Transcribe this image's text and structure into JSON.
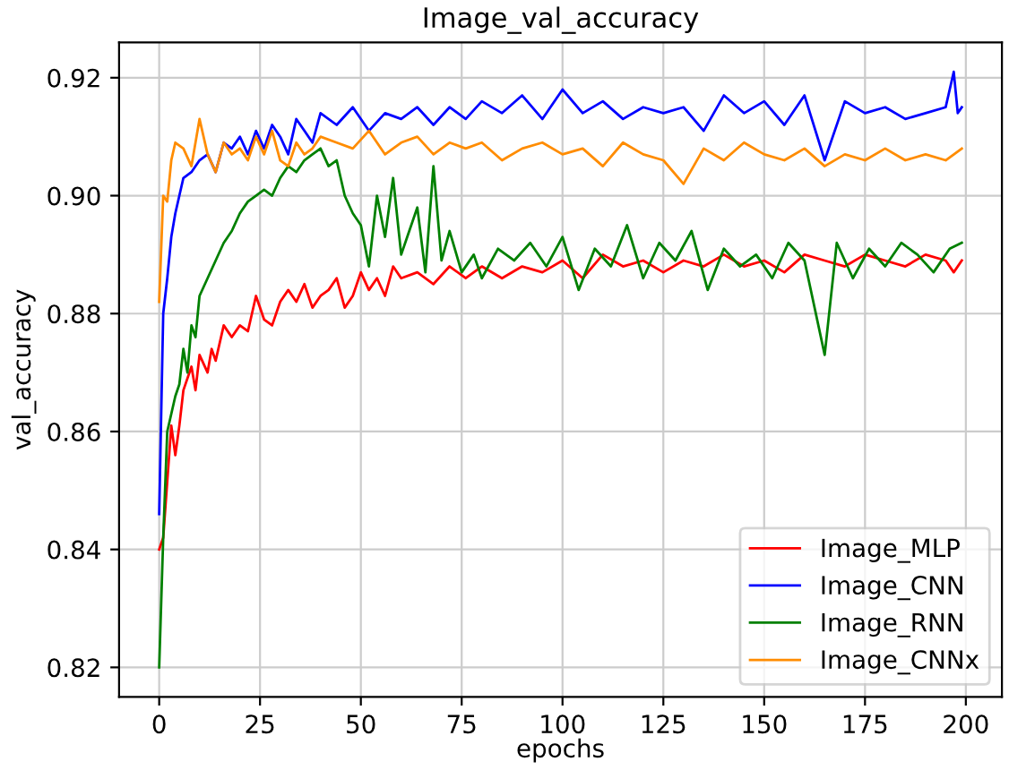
{
  "chart_data": {
    "type": "line",
    "title": "Image_val_accuracy",
    "xlabel": "epochs",
    "ylabel": "val_accuracy",
    "xlim": [
      -9.95,
      208.95
    ],
    "ylim": [
      0.815,
      0.926
    ],
    "xticks": [
      0,
      25,
      50,
      75,
      100,
      125,
      150,
      175,
      200
    ],
    "yticks": [
      {
        "value": 0.82,
        "label": "0.82"
      },
      {
        "value": 0.84,
        "label": "0.84"
      },
      {
        "value": 0.86,
        "label": "0.86"
      },
      {
        "value": 0.88,
        "label": "0.88"
      },
      {
        "value": 0.9,
        "label": "0.90"
      },
      {
        "value": 0.92,
        "label": "0.92"
      }
    ],
    "grid": true,
    "legend": "bottom right",
    "line_style": "solid",
    "marker": "none",
    "series": [
      {
        "name": "Image_MLP",
        "color": "#ff0000",
        "x": [
          0,
          1,
          3,
          4,
          5,
          6,
          8,
          9,
          10,
          12,
          13,
          14,
          16,
          18,
          20,
          22,
          24,
          26,
          28,
          30,
          32,
          34,
          36,
          38,
          40,
          42,
          44,
          46,
          48,
          50,
          52,
          54,
          56,
          58,
          60,
          64,
          68,
          72,
          76,
          80,
          85,
          90,
          95,
          100,
          105,
          110,
          115,
          120,
          125,
          130,
          135,
          140,
          145,
          150,
          155,
          160,
          165,
          170,
          175,
          180,
          185,
          190,
          195,
          197,
          199
        ],
        "values": [
          0.84,
          0.842,
          0.861,
          0.856,
          0.861,
          0.867,
          0.871,
          0.867,
          0.873,
          0.87,
          0.874,
          0.872,
          0.878,
          0.876,
          0.878,
          0.877,
          0.883,
          0.879,
          0.878,
          0.882,
          0.884,
          0.882,
          0.885,
          0.881,
          0.883,
          0.884,
          0.886,
          0.881,
          0.883,
          0.887,
          0.884,
          0.886,
          0.883,
          0.888,
          0.886,
          0.887,
          0.885,
          0.888,
          0.886,
          0.888,
          0.886,
          0.888,
          0.887,
          0.889,
          0.886,
          0.89,
          0.888,
          0.889,
          0.887,
          0.889,
          0.888,
          0.89,
          0.888,
          0.889,
          0.887,
          0.89,
          0.889,
          0.888,
          0.89,
          0.889,
          0.888,
          0.89,
          0.889,
          0.887,
          0.889
        ]
      },
      {
        "name": "Image_CNN",
        "color": "#0000ff",
        "x": [
          0,
          1,
          2,
          3,
          4,
          5,
          6,
          8,
          10,
          12,
          14,
          16,
          18,
          20,
          22,
          24,
          26,
          28,
          30,
          32,
          34,
          36,
          38,
          40,
          44,
          48,
          52,
          56,
          60,
          64,
          68,
          72,
          76,
          80,
          85,
          90,
          95,
          100,
          105,
          110,
          115,
          120,
          125,
          130,
          135,
          140,
          145,
          150,
          155,
          160,
          165,
          170,
          175,
          180,
          185,
          190,
          195,
          197,
          198,
          199
        ],
        "values": [
          0.846,
          0.88,
          0.886,
          0.893,
          0.897,
          0.9,
          0.903,
          0.904,
          0.906,
          0.907,
          0.904,
          0.909,
          0.908,
          0.91,
          0.907,
          0.911,
          0.908,
          0.912,
          0.91,
          0.907,
          0.913,
          0.911,
          0.909,
          0.914,
          0.912,
          0.915,
          0.911,
          0.914,
          0.913,
          0.915,
          0.912,
          0.915,
          0.913,
          0.916,
          0.914,
          0.917,
          0.913,
          0.918,
          0.914,
          0.916,
          0.913,
          0.915,
          0.914,
          0.915,
          0.911,
          0.917,
          0.914,
          0.916,
          0.912,
          0.917,
          0.906,
          0.916,
          0.914,
          0.915,
          0.913,
          0.914,
          0.915,
          0.921,
          0.914,
          0.915
        ]
      },
      {
        "name": "Image_RNN",
        "color": "#008000",
        "x": [
          0,
          1,
          2,
          3,
          4,
          5,
          6,
          7,
          8,
          9,
          10,
          12,
          14,
          16,
          18,
          20,
          22,
          24,
          26,
          28,
          30,
          32,
          34,
          36,
          38,
          40,
          42,
          44,
          46,
          48,
          50,
          52,
          54,
          56,
          58,
          60,
          62,
          64,
          66,
          68,
          70,
          72,
          75,
          78,
          80,
          84,
          88,
          92,
          96,
          100,
          104,
          108,
          112,
          116,
          120,
          124,
          128,
          132,
          136,
          140,
          144,
          148,
          152,
          156,
          160,
          165,
          168,
          172,
          176,
          180,
          184,
          188,
          192,
          196,
          199
        ],
        "values": [
          0.82,
          0.842,
          0.86,
          0.863,
          0.866,
          0.868,
          0.874,
          0.87,
          0.878,
          0.876,
          0.883,
          0.886,
          0.889,
          0.892,
          0.894,
          0.897,
          0.899,
          0.9,
          0.901,
          0.9,
          0.903,
          0.905,
          0.904,
          0.906,
          0.907,
          0.908,
          0.905,
          0.906,
          0.9,
          0.897,
          0.895,
          0.888,
          0.9,
          0.893,
          0.903,
          0.89,
          0.894,
          0.898,
          0.887,
          0.905,
          0.889,
          0.894,
          0.887,
          0.89,
          0.886,
          0.891,
          0.889,
          0.892,
          0.888,
          0.893,
          0.884,
          0.891,
          0.888,
          0.895,
          0.886,
          0.892,
          0.889,
          0.894,
          0.884,
          0.891,
          0.888,
          0.89,
          0.886,
          0.892,
          0.889,
          0.873,
          0.892,
          0.886,
          0.891,
          0.888,
          0.892,
          0.89,
          0.887,
          0.891,
          0.892
        ]
      },
      {
        "name": "Image_CNNx",
        "color": "#ff8c00",
        "x": [
          0,
          1,
          2,
          3,
          4,
          6,
          8,
          10,
          12,
          14,
          16,
          18,
          20,
          22,
          24,
          26,
          28,
          30,
          32,
          34,
          36,
          38,
          40,
          44,
          48,
          52,
          56,
          60,
          64,
          68,
          72,
          76,
          80,
          85,
          90,
          95,
          100,
          105,
          110,
          115,
          120,
          125,
          130,
          135,
          140,
          145,
          150,
          155,
          160,
          165,
          170,
          175,
          180,
          185,
          190,
          195,
          199
        ],
        "values": [
          0.882,
          0.9,
          0.899,
          0.906,
          0.909,
          0.908,
          0.905,
          0.913,
          0.907,
          0.904,
          0.909,
          0.907,
          0.908,
          0.906,
          0.91,
          0.907,
          0.911,
          0.906,
          0.905,
          0.909,
          0.907,
          0.908,
          0.91,
          0.909,
          0.908,
          0.911,
          0.907,
          0.909,
          0.91,
          0.907,
          0.909,
          0.908,
          0.909,
          0.906,
          0.908,
          0.909,
          0.907,
          0.908,
          0.905,
          0.909,
          0.907,
          0.906,
          0.902,
          0.908,
          0.906,
          0.909,
          0.907,
          0.906,
          0.908,
          0.905,
          0.907,
          0.906,
          0.908,
          0.906,
          0.907,
          0.906,
          0.908
        ]
      }
    ]
  }
}
